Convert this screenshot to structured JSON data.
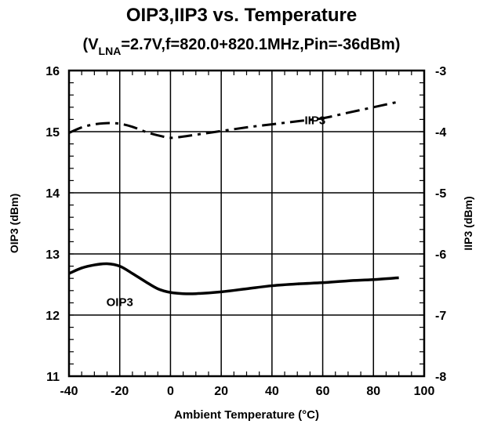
{
  "chart_data": {
    "type": "line",
    "title": "OIP3,IIP3 vs. Temperature",
    "subtitle": {
      "prefix": "(V",
      "sub": "LNA",
      "rest": "=2.7V,f=820.0+820.1MHz,Pin=-36dBm)"
    },
    "xlabel": "Ambient Temperature (°C)",
    "ylabel": "OIP3 (dBm)",
    "y2label": "IIP3 (dBm)",
    "xlim": [
      -40,
      100
    ],
    "ylim": [
      11,
      16
    ],
    "y2lim": [
      -8,
      -3
    ],
    "xticks": [
      -40,
      -20,
      0,
      20,
      40,
      60,
      80,
      100
    ],
    "yticks": [
      11,
      12,
      13,
      14,
      15,
      16
    ],
    "y2ticks": [
      -8,
      -7,
      -6,
      -5,
      -4,
      -3
    ],
    "grid": true,
    "series": [
      {
        "name": "OIP3",
        "axis": "left",
        "style": "solid",
        "x": [
          -40,
          -35,
          -30,
          -25,
          -20,
          -15,
          -10,
          -5,
          0,
          5,
          10,
          20,
          30,
          40,
          50,
          60,
          70,
          80,
          90
        ],
        "y": [
          12.68,
          12.77,
          12.82,
          12.84,
          12.8,
          12.68,
          12.55,
          12.43,
          12.37,
          12.35,
          12.35,
          12.38,
          12.43,
          12.48,
          12.51,
          12.53,
          12.56,
          12.58,
          12.61
        ]
      },
      {
        "name": "IIP3",
        "axis": "right",
        "style": "dash-dot",
        "x": [
          -40,
          -35,
          -30,
          -25,
          -20,
          -15,
          -10,
          -5,
          0,
          5,
          10,
          20,
          30,
          40,
          50,
          60,
          70,
          80,
          90
        ],
        "y": [
          -4.02,
          -3.93,
          -3.88,
          -3.86,
          -3.87,
          -3.92,
          -4.0,
          -4.06,
          -4.1,
          -4.08,
          -4.05,
          -3.99,
          -3.93,
          -3.88,
          -3.83,
          -3.78,
          -3.69,
          -3.6,
          -3.51
        ]
      }
    ]
  }
}
